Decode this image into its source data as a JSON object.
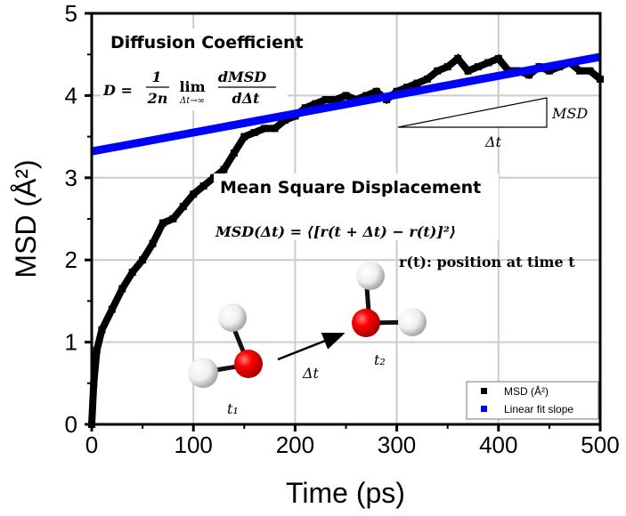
{
  "chart_data": {
    "type": "scatter",
    "xlabel": "Time (ps)",
    "ylabel": "MSD (Å²)",
    "xlim": [
      0,
      500
    ],
    "ylim": [
      0,
      5
    ],
    "xticks": [
      "0",
      "100",
      "200",
      "300",
      "400",
      "500"
    ],
    "yticks": [
      "0",
      "1",
      "2",
      "3",
      "4",
      "5"
    ],
    "grid": true,
    "legend_position": "bottom-right",
    "series": [
      {
        "name": "MSD (Å²)",
        "color": "#000000",
        "marker": "square",
        "x": [
          0,
          2,
          5,
          10,
          20,
          30,
          40,
          50,
          60,
          70,
          80,
          90,
          100,
          110,
          120,
          130,
          140,
          150,
          160,
          170,
          180,
          190,
          200,
          210,
          220,
          230,
          240,
          250,
          260,
          270,
          280,
          290,
          300,
          310,
          320,
          330,
          340,
          350,
          360,
          370,
          380,
          390,
          400,
          410,
          420,
          430,
          440,
          450,
          460,
          470,
          480,
          490,
          500
        ],
        "y": [
          0,
          0.5,
          0.9,
          1.15,
          1.4,
          1.65,
          1.85,
          2.0,
          2.2,
          2.45,
          2.5,
          2.65,
          2.8,
          2.9,
          3.0,
          3.1,
          3.3,
          3.5,
          3.55,
          3.6,
          3.6,
          3.7,
          3.75,
          3.85,
          3.9,
          3.95,
          3.95,
          4.0,
          3.95,
          4.0,
          4.05,
          3.95,
          4.05,
          4.1,
          4.15,
          4.2,
          4.3,
          4.35,
          4.45,
          4.3,
          4.35,
          4.4,
          4.45,
          4.3,
          4.3,
          4.25,
          4.35,
          4.3,
          4.35,
          4.4,
          4.3,
          4.3,
          4.2
        ]
      },
      {
        "name": "Linear fit slope",
        "color": "#0000ff",
        "type": "line",
        "x": [
          0,
          500
        ],
        "y": [
          3.32,
          4.47
        ]
      }
    ],
    "annotations": {
      "diffusion_title": "Diffusion Coefficient",
      "diffusion_lhs": "D =",
      "diffusion_num": "1",
      "diffusion_den": "2n",
      "diffusion_lim": "lim",
      "diffusion_lim_sub": "Δt→∞",
      "diffusion_frac_num": "dMSD",
      "diffusion_frac_den": "dΔt",
      "slope_vertical_label": "MSD",
      "slope_horizontal_label": "Δt",
      "msd_title": "Mean Square Displacement",
      "msd_formula": "MSD(Δt) = ⟨[r(t + Δt) − r(t)]²⟩",
      "position_note": "r(t): position at time t",
      "t1_label": "t₁",
      "t2_label": "t₂",
      "arrow_label": "Δt"
    }
  }
}
